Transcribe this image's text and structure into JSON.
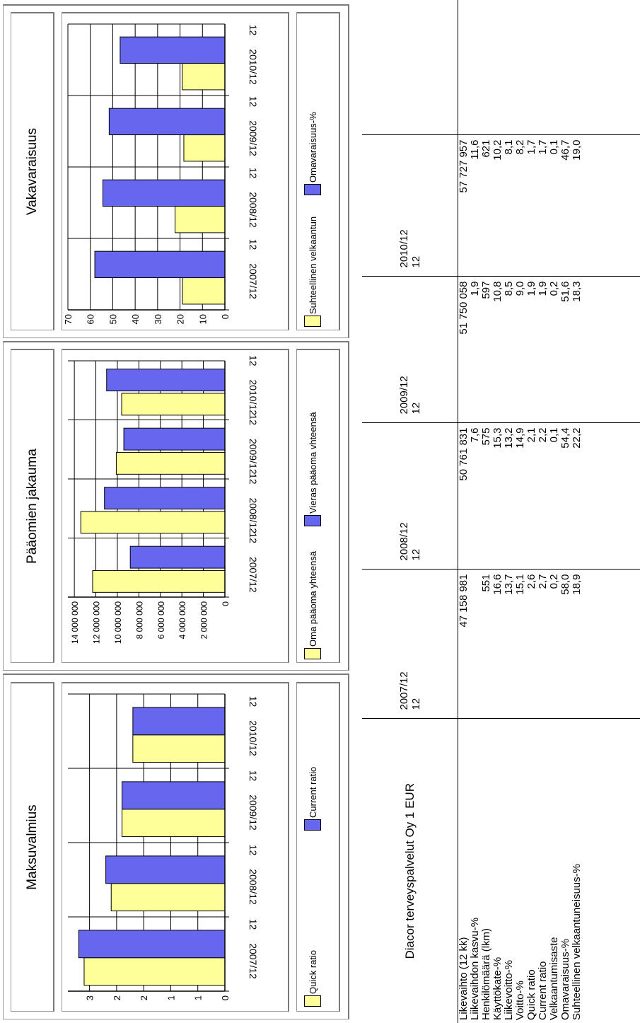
{
  "charts": [
    {
      "id": "maksuvalmius",
      "title": "Maksuvalmius",
      "chart_data": {
        "type": "bar",
        "title": "Maksuvalmius",
        "categories": [
          "2007/12",
          "2008/12",
          "2009/12",
          "2010/12"
        ],
        "category_sub": [
          "12",
          "12",
          "12",
          "12"
        ],
        "series": [
          {
            "name": "Quick ratio",
            "color": "#ffff99",
            "values": [
              2.6,
              2.1,
              1.9,
              1.7
            ]
          },
          {
            "name": "Current ratio",
            "color": "#6666ee",
            "values": [
              2.7,
              2.2,
              1.9,
              1.7
            ]
          }
        ],
        "ylim": [
          0,
          2.9
        ],
        "ticks": [
          0,
          0.5,
          1,
          1.5,
          2,
          2.5
        ],
        "tick_labels": [
          "0",
          "1",
          "1",
          "2",
          "2",
          "3"
        ],
        "legend": "bottom",
        "grid": true
      }
    },
    {
      "id": "paaomien",
      "title": "Pääomien jakauma",
      "chart_data": {
        "type": "bar",
        "title": "Pääomien jakauma",
        "categories": [
          "2007/12",
          "2008/12",
          "2009/12",
          "2010/12"
        ],
        "category_sub": [
          "12",
          "12",
          "12",
          "12"
        ],
        "series": [
          {
            "name": "Oma pääoma yhteensä",
            "color": "#ffff99",
            "values": [
              12300000,
              13400000,
              10100000,
              9600000
            ]
          },
          {
            "name": "Vieras pääoma vhteensä",
            "color": "#6666ee",
            "values": [
              8800000,
              11200000,
              9400000,
              11000000
            ]
          }
        ],
        "ylim": [
          0,
          14600000
        ],
        "ticks": [
          0,
          2000000,
          4000000,
          6000000,
          8000000,
          10000000,
          12000000,
          14000000
        ],
        "tick_labels": [
          "0",
          "2 000 000",
          "4 000 000",
          "6 000 000",
          "8 000 000",
          "10 000 000",
          "12 000 000",
          "14 000 000"
        ],
        "legend": "bottom",
        "grid": true
      }
    },
    {
      "id": "vakavaraisuus",
      "title": "Vakavaraisuus",
      "chart_data": {
        "type": "bar",
        "title": "Vakavaraisuus",
        "categories": [
          "2007/12",
          "2008/12",
          "2009/12",
          "2010/12"
        ],
        "category_sub": [
          "12",
          "12",
          "12",
          "12"
        ],
        "series": [
          {
            "name": "Suhteellinen velkaantun",
            "color": "#ffff99",
            "values": [
              18.9,
              22.2,
              18.3,
              19.0
            ]
          },
          {
            "name": "Omavaraisuus-%",
            "color": "#6666ee",
            "values": [
              58.0,
              54.4,
              51.6,
              46.7
            ]
          }
        ],
        "ylim": [
          0,
          70
        ],
        "ticks": [
          0,
          10,
          20,
          30,
          40,
          50,
          60,
          70
        ],
        "tick_labels": [
          "0",
          "10",
          "20",
          "30",
          "40",
          "50",
          "60",
          "70"
        ],
        "legend": "bottom",
        "grid": true
      }
    }
  ],
  "table": {
    "company": "Diacor terveyspalvelut Oy 1 EUR",
    "years": [
      {
        "year": "2007/12",
        "months": "12"
      },
      {
        "year": "2008/12",
        "months": "12"
      },
      {
        "year": "2009/12",
        "months": "12"
      },
      {
        "year": "2010/12",
        "months": "12"
      }
    ],
    "rows": [
      {
        "label": "Likevaihto (12 kk)",
        "values": [
          "47 158 981",
          "50 761 831",
          "51 750 058",
          "57 727 957"
        ]
      },
      {
        "label": "Liikevaihdon kasvu-%",
        "values": [
          "",
          "7,6",
          "1,9",
          "11,6"
        ]
      },
      {
        "label": "Henkilömäärä (lkm)",
        "values": [
          "551",
          "575",
          "597",
          "621"
        ]
      },
      {
        "label": "Käyttökate-%",
        "values": [
          "16,6",
          "15,3",
          "10,8",
          "10,2"
        ]
      },
      {
        "label": "Liikevoitto-%",
        "values": [
          "13,7",
          "13,2",
          "8,5",
          "8,1"
        ]
      },
      {
        "label": "Voitto-%",
        "values": [
          "15,1",
          "14,9",
          "9,0",
          "8,2"
        ]
      },
      {
        "label": "Quick ratio",
        "values": [
          "2,6",
          "2,1",
          "1,9",
          "1,7"
        ]
      },
      {
        "label": "Current ratio",
        "values": [
          "2,7",
          "2,2",
          "1,9",
          "1,7"
        ]
      },
      {
        "label": "Velkaantumisaste",
        "values": [
          "0,2",
          "0,1",
          "0,2",
          "0,1"
        ]
      },
      {
        "label": "Omavaraisuus-%",
        "values": [
          "58,0",
          "54,4",
          "51,6",
          "46,7"
        ]
      },
      {
        "label": "Suhteellinen velkaantuneisuus-%",
        "values": [
          "18,9",
          "22,2",
          "18,3",
          "19,0"
        ]
      }
    ]
  }
}
